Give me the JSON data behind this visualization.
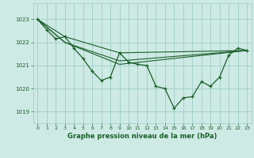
{
  "background_color": "#ceeae4",
  "grid_color": "#9ecdc5",
  "line_color": "#1a5e2a",
  "title": "Graphe pression niveau de la mer (hPa)",
  "ylim": [
    1018.5,
    1023.7
  ],
  "xlim": [
    -0.5,
    23.5
  ],
  "yticks": [
    1019,
    1020,
    1021,
    1022,
    1023
  ],
  "xticks": [
    0,
    1,
    2,
    3,
    4,
    5,
    6,
    7,
    8,
    9,
    10,
    11,
    12,
    13,
    14,
    15,
    16,
    17,
    18,
    19,
    20,
    21,
    22,
    23
  ],
  "main_series": {
    "x": [
      0,
      1,
      2,
      3,
      4,
      5,
      6,
      7,
      8,
      9,
      10,
      11,
      12,
      13,
      14,
      15,
      16,
      17,
      18,
      19,
      20,
      21,
      22,
      23
    ],
    "y": [
      1023.0,
      1022.55,
      1022.15,
      1022.25,
      1021.75,
      1021.3,
      1020.75,
      1020.35,
      1020.5,
      1021.55,
      1021.15,
      1021.05,
      1021.0,
      1020.1,
      1020.0,
      1019.15,
      1019.6,
      1019.65,
      1020.3,
      1020.1,
      1020.5,
      1021.45,
      1021.75,
      1021.65
    ]
  },
  "straight_lines": [
    {
      "x": [
        0,
        3,
        9,
        23
      ],
      "y": [
        1023.0,
        1022.25,
        1021.55,
        1021.65
      ]
    },
    {
      "x": [
        0,
        3,
        9,
        23
      ],
      "y": [
        1023.0,
        1022.0,
        1021.2,
        1021.65
      ]
    },
    {
      "x": [
        0,
        3,
        9,
        23
      ],
      "y": [
        1023.0,
        1022.0,
        1021.05,
        1021.65
      ]
    }
  ]
}
